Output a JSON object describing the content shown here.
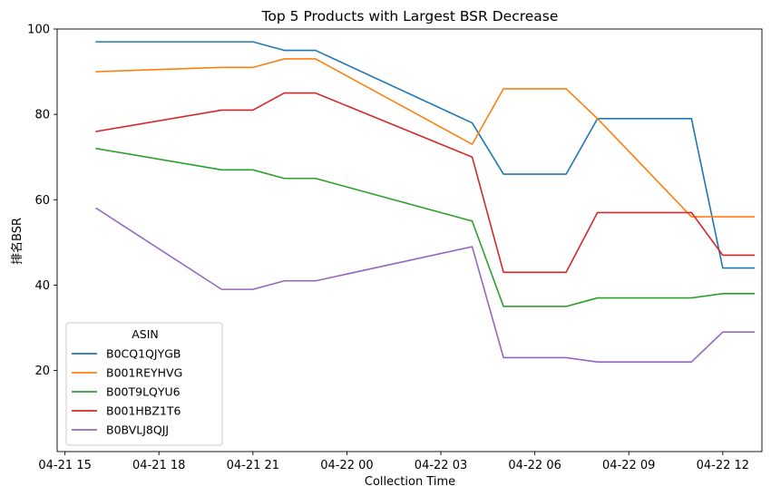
{
  "chart_data": {
    "type": "line",
    "title": "Top 5 Products with Largest BSR Decrease",
    "xlabel": "Collection Time",
    "ylabel": "排名BSR",
    "ylim": [
      1,
      100
    ],
    "xlim": [
      "2025-04-21 14:45",
      "2025-04-22 13:15"
    ],
    "yticks": [
      20,
      40,
      60,
      80,
      100
    ],
    "xticks": [
      {
        "t": "2025-04-21 15:00",
        "label": "04-21 15"
      },
      {
        "t": "2025-04-21 18:00",
        "label": "04-21 18"
      },
      {
        "t": "2025-04-21 21:00",
        "label": "04-21 21"
      },
      {
        "t": "2025-04-22 00:00",
        "label": "04-22 00"
      },
      {
        "t": "2025-04-22 03:00",
        "label": "04-22 03"
      },
      {
        "t": "2025-04-22 06:00",
        "label": "04-22 06"
      },
      {
        "t": "2025-04-22 09:00",
        "label": "04-22 09"
      },
      {
        "t": "2025-04-22 12:00",
        "label": "04-22 12"
      }
    ],
    "x": [
      "2025-04-21 16:00",
      "2025-04-21 20:00",
      "2025-04-21 21:00",
      "2025-04-21 22:00",
      "2025-04-21 23:00",
      "2025-04-22 04:00",
      "2025-04-22 05:00",
      "2025-04-22 07:00",
      "2025-04-22 08:00",
      "2025-04-22 11:00",
      "2025-04-22 12:00",
      "2025-04-22 13:00"
    ],
    "series": [
      {
        "name": "B0CQ1QJYGB",
        "color": "#1f77b4",
        "values": [
          97,
          97,
          97,
          95,
          95,
          78,
          66,
          66,
          79,
          79,
          44,
          44
        ]
      },
      {
        "name": "B001REYHVG",
        "color": "#ff7f0e",
        "values": [
          90,
          91,
          91,
          93,
          93,
          73,
          86,
          86,
          79,
          56,
          56,
          56
        ]
      },
      {
        "name": "B00T9LQYU6",
        "color": "#2ca02c",
        "values": [
          72,
          67,
          67,
          65,
          65,
          55,
          35,
          35,
          37,
          37,
          38,
          38
        ]
      },
      {
        "name": "B001HBZ1T6",
        "color": "#d62728",
        "values": [
          76,
          81,
          81,
          85,
          85,
          70,
          43,
          43,
          57,
          57,
          47,
          47
        ]
      },
      {
        "name": "B0BVLJ8QJJ",
        "color": "#9467bd",
        "values": [
          58,
          39,
          39,
          41,
          41,
          49,
          23,
          23,
          22,
          22,
          29,
          29
        ]
      }
    ],
    "grid": false,
    "legend": {
      "title": "ASIN",
      "position": "lower-left"
    }
  }
}
